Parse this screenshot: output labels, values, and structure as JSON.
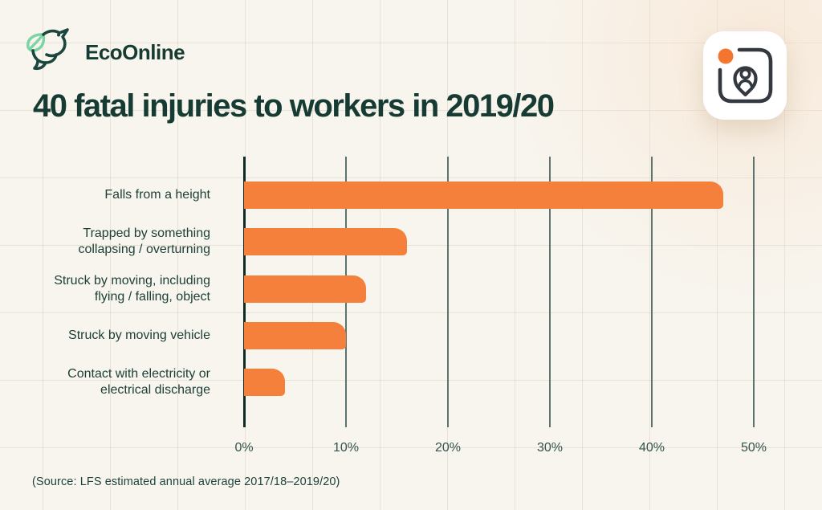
{
  "header": {
    "brand": "EcoOnline",
    "logo_icon": "bird-with-leaf",
    "app_icon": "lone-worker-location-pin",
    "app_icon_dot_color": "#F4762E"
  },
  "title": "40 fatal injuries to workers in 2019/20",
  "source_note": "(Source: LFS estimated annual average 2017/18–2019/20)",
  "colors": {
    "background": "#F8F5EE",
    "bar": "#F5803C",
    "axis": "#0F2B26",
    "gridline": "#5C736E",
    "text_dark": "#153B33",
    "leaf_green": "#7CD3A4"
  },
  "chart_data": {
    "type": "bar",
    "orientation": "horizontal",
    "title": "40 fatal injuries to workers in 2019/20",
    "categories": [
      "Falls from a height",
      "Trapped by something collapsing / overturning",
      "Struck by moving, including flying / falling, object",
      "Struck by moving vehicle",
      "Contact with electricity or electrical discharge"
    ],
    "label_lines": [
      [
        "Falls from a height"
      ],
      [
        "Trapped by something",
        "collapsing / overturning"
      ],
      [
        "Struck by moving, including",
        "flying / falling, object"
      ],
      [
        "Struck by moving vehicle"
      ],
      [
        "Contact with electricity or",
        "electrical discharge"
      ]
    ],
    "values": [
      47,
      16,
      12,
      10,
      4
    ],
    "unit": "%",
    "xlim": [
      0,
      50
    ],
    "x_ticks": [
      "0%",
      "10%",
      "20%",
      "30%",
      "40%",
      "50%"
    ],
    "grid": true,
    "legend": false,
    "bar_color": "#F5803C",
    "xlabel": "",
    "ylabel": ""
  }
}
